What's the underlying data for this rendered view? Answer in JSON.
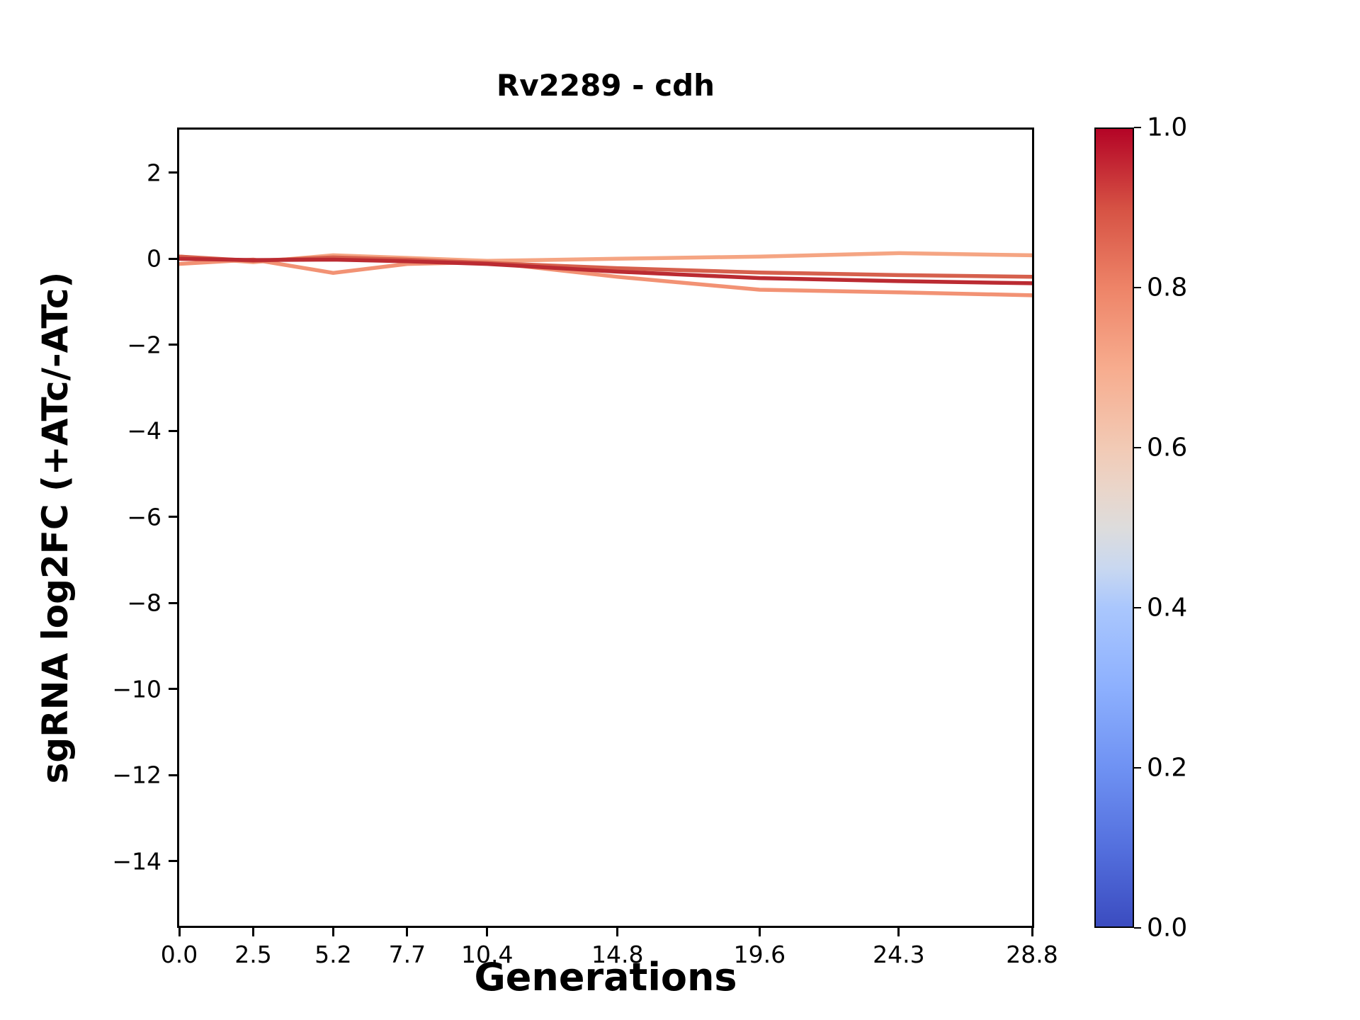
{
  "title": "Rv2289 - cdh",
  "xlabel": "Generations",
  "ylabel": "sgRNA log2FC (+ATc/-ATc)",
  "chart_data": {
    "type": "line",
    "x": [
      0.0,
      2.5,
      5.2,
      7.7,
      10.4,
      14.8,
      19.6,
      24.3,
      28.8
    ],
    "series": [
      {
        "color": "#f5a583",
        "values": [
          0.05,
          -0.08,
          0.08,
          0.02,
          -0.05,
          0.0,
          0.05,
          0.13,
          0.08
        ]
      },
      {
        "color": "#f29274",
        "values": [
          -0.12,
          -0.02,
          -0.33,
          -0.12,
          -0.08,
          -0.42,
          -0.72,
          -0.78,
          -0.85
        ]
      },
      {
        "color": "#d6604d",
        "values": [
          0.05,
          -0.05,
          0.03,
          -0.02,
          -0.1,
          -0.22,
          -0.32,
          -0.38,
          -0.42
        ]
      },
      {
        "color": "#bb2b32",
        "values": [
          0.0,
          -0.03,
          -0.02,
          -0.06,
          -0.12,
          -0.3,
          -0.45,
          -0.52,
          -0.57
        ]
      }
    ],
    "xlim": [
      0.0,
      28.8
    ],
    "ylim": [
      -15.5,
      3.0
    ],
    "xticks": [
      0.0,
      2.5,
      5.2,
      7.7,
      10.4,
      14.8,
      19.6,
      24.3,
      28.8
    ],
    "xtick_labels": [
      "0.0",
      "2.5",
      "5.2",
      "7.7",
      "10.4",
      "14.8",
      "19.6",
      "24.3",
      "28.8"
    ],
    "yticks": [
      2,
      0,
      -2,
      -4,
      -6,
      -8,
      -10,
      -12,
      -14
    ],
    "ytick_labels": [
      "2",
      "0",
      "−2",
      "−4",
      "−6",
      "−8",
      "−10",
      "−12",
      "−14"
    ],
    "grid": false,
    "legend": "none",
    "colorbar": {
      "cmap": "coolwarm",
      "range": [
        0.0,
        1.0
      ],
      "ticks": [
        1.0,
        0.8,
        0.6,
        0.4,
        0.2,
        0.0
      ],
      "tick_labels": [
        "1.0",
        "0.8",
        "0.6",
        "0.4",
        "0.2",
        "0.0"
      ],
      "color_low": "#3b4cc0",
      "color_mid": "#dddcdc",
      "color_high": "#b40426"
    }
  }
}
